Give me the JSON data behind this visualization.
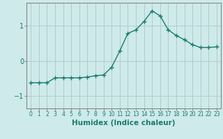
{
  "x": [
    0,
    1,
    2,
    3,
    4,
    5,
    6,
    7,
    8,
    9,
    10,
    11,
    12,
    13,
    14,
    15,
    16,
    17,
    18,
    19,
    20,
    21,
    22,
    23
  ],
  "y": [
    -0.62,
    -0.62,
    -0.62,
    -0.48,
    -0.48,
    -0.48,
    -0.48,
    -0.46,
    -0.42,
    -0.4,
    -0.18,
    0.28,
    0.78,
    0.88,
    1.12,
    1.42,
    1.28,
    0.88,
    0.72,
    0.6,
    0.46,
    0.38,
    0.38,
    0.4
  ],
  "line_color": "#1a7a6e",
  "marker": "+",
  "marker_size": 4,
  "bg_color": "#ceeaea",
  "grid_color": "#b0cccc",
  "xlabel": "Humidex (Indice chaleur)",
  "xlabel_fontsize": 7.5,
  "yticks": [
    -1,
    0,
    1
  ],
  "xtick_labels": [
    "0",
    "1",
    "2",
    "3",
    "4",
    "5",
    "6",
    "7",
    "8",
    "9",
    "10",
    "11",
    "12",
    "13",
    "14",
    "15",
    "16",
    "17",
    "18",
    "19",
    "20",
    "21",
    "22",
    "23"
  ],
  "xlim": [
    -0.5,
    23.5
  ],
  "ylim": [
    -1.35,
    1.65
  ],
  "ytick_fontsize": 7,
  "xtick_fontsize": 5.5,
  "line_width": 1.0,
  "spine_color": "#888888",
  "tick_color": "#1a7a6e",
  "label_color": "#1a7a6e"
}
